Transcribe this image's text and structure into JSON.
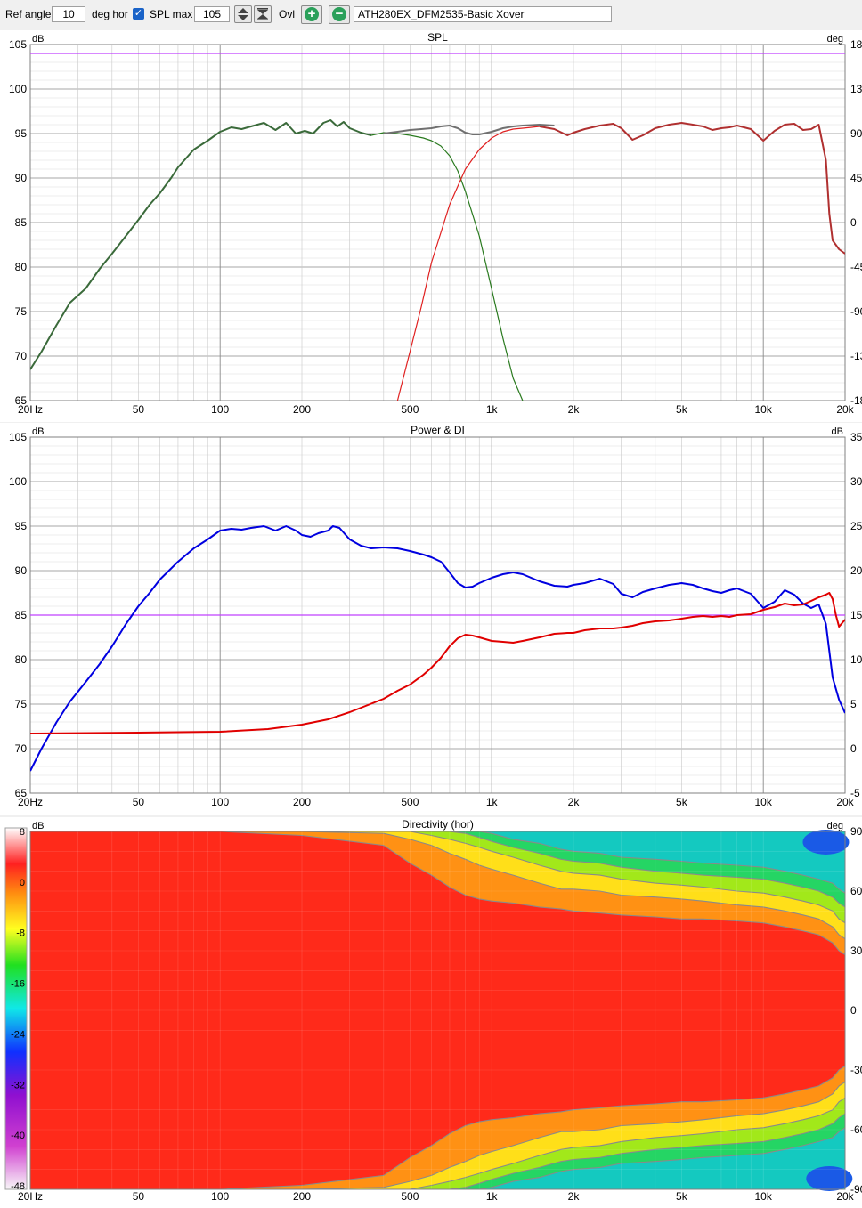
{
  "toolbar": {
    "ref_angle_label": "Ref angle",
    "ref_angle_value": "10",
    "deg_hor_label": "deg hor",
    "spl_max_label": "SPL max",
    "spl_max_value": "105",
    "ovl_label": "Ovl",
    "project_name": "ATH280EX_DFM2535-Basic Xover"
  },
  "colors": {
    "grid": "#a0a0a0",
    "reference_line": "#c040ff",
    "woofer": "#2a7a1f",
    "tweeter": "#e02020",
    "sum_upper": "#707070",
    "sum_lower": "#b03030",
    "power": "#0000e0",
    "di": "#e00000"
  },
  "chart_data": [
    {
      "type": "line",
      "title": "SPL",
      "ylabel": "dB",
      "y2label": "deg",
      "xscale": "log",
      "xlim": [
        20,
        20000
      ],
      "ylim": [
        65,
        105
      ],
      "x_ticks": [
        "20Hz",
        "50",
        "100",
        "200",
        "500",
        "1k",
        "2k",
        "5k",
        "10k",
        "20k"
      ],
      "y_ticks": [
        "105",
        "100",
        "95",
        "90",
        "85",
        "80",
        "75",
        "70",
        "65"
      ],
      "y2_ticks": [
        "180",
        "135",
        "90",
        "45",
        "0",
        "-45",
        "-90",
        "-135",
        "-180"
      ],
      "reference_line": 104,
      "series": [
        {
          "x": [
            20,
            22,
            25,
            28,
            32,
            36,
            40,
            45,
            50,
            55,
            60,
            66,
            70,
            80,
            90,
            100,
            110,
            120,
            130,
            145,
            160,
            175,
            190,
            205,
            220,
            240,
            255,
            270,
            285,
            300,
            330,
            360,
            400,
            450,
            500,
            560,
            600,
            650,
            700,
            750,
            800,
            900,
            1000,
            1100,
            1200,
            1300
          ],
          "y": [
            68.5,
            70.5,
            73.5,
            76,
            77.6,
            79.8,
            81.5,
            83.5,
            85.3,
            87,
            88.3,
            90,
            91.2,
            93.2,
            94.2,
            95.2,
            95.7,
            95.5,
            95.8,
            96.2,
            95.4,
            96.2,
            95,
            95.3,
            95,
            96.2,
            96.5,
            95.8,
            96.3,
            95.6,
            95.1,
            94.8,
            95.1,
            95,
            94.8,
            94.5,
            94.2,
            93.6,
            92.5,
            90.8,
            88.5,
            83.5,
            77.5,
            72,
            67.5,
            65
          ]
        },
        {
          "x": [
            450,
            500,
            550,
            600,
            700,
            800,
            900,
            1000,
            1100,
            1200,
            1300,
            1400,
            1500
          ],
          "y": [
            65,
            70.5,
            75.5,
            80.5,
            87,
            91,
            93.2,
            94.5,
            95.2,
            95.5,
            95.6,
            95.7,
            95.8
          ]
        },
        {
          "x": [
            400,
            450,
            500,
            550,
            600,
            650,
            700,
            750,
            800,
            850,
            900,
            1000,
            1100,
            1200,
            1300,
            1500,
            1700
          ],
          "y": [
            95,
            95.2,
            95.4,
            95.5,
            95.6,
            95.8,
            95.9,
            95.6,
            95.1,
            94.9,
            94.9,
            95.2,
            95.6,
            95.8,
            95.9,
            96,
            95.9
          ]
        },
        {
          "x": [
            1500,
            1700,
            1900,
            2000,
            2200,
            2500,
            2800,
            3000,
            3300,
            3600,
            4000,
            4500,
            5000,
            5500,
            6000,
            6500,
            7000,
            7500,
            8000,
            9000,
            10000,
            11000,
            12000,
            13000,
            14000,
            15000,
            16000,
            17000,
            17500,
            18000,
            19000,
            20000
          ],
          "y": [
            95.8,
            95.5,
            94.8,
            95.1,
            95.5,
            95.9,
            96.1,
            95.6,
            94.3,
            94.8,
            95.6,
            96,
            96.2,
            96,
            95.8,
            95.4,
            95.6,
            95.7,
            95.9,
            95.5,
            94.2,
            95.3,
            96,
            96.1,
            95.4,
            95.5,
            96,
            92,
            86,
            83,
            82,
            81.5
          ]
        }
      ]
    },
    {
      "type": "line",
      "title": "Power & DI",
      "ylabel": "dB",
      "y2label": "dB",
      "xscale": "log",
      "xlim": [
        20,
        20000
      ],
      "ylim": [
        65,
        105
      ],
      "x_ticks": [
        "20Hz",
        "50",
        "100",
        "200",
        "500",
        "1k",
        "2k",
        "5k",
        "10k",
        "20k"
      ],
      "y_ticks": [
        "105",
        "100",
        "95",
        "90",
        "85",
        "80",
        "75",
        "70",
        "65"
      ],
      "y2_ticks": [
        "35",
        "30",
        "25",
        "20",
        "15",
        "10",
        "5",
        "0",
        "-5"
      ],
      "reference_line": 85,
      "series": [
        {
          "x": [
            20,
            22,
            25,
            28,
            32,
            36,
            40,
            45,
            50,
            55,
            60,
            70,
            80,
            90,
            100,
            110,
            120,
            130,
            145,
            160,
            175,
            190,
            200,
            215,
            230,
            250,
            260,
            275,
            300,
            330,
            360,
            400,
            450,
            500,
            560,
            600,
            650,
            700,
            750,
            800,
            850,
            900,
            1000,
            1100,
            1200,
            1300,
            1500,
            1700,
            1900,
            2000,
            2200,
            2500,
            2800,
            3000,
            3300,
            3600,
            4000,
            4500,
            5000,
            5500,
            6000,
            6500,
            7000,
            7500,
            8000,
            9000,
            10000,
            11000,
            12000,
            13000,
            14000,
            15000,
            16000,
            17000,
            18000,
            19000,
            20000
          ],
          "y": [
            67.5,
            70,
            73,
            75.3,
            77.5,
            79.5,
            81.5,
            84,
            86,
            87.5,
            89,
            91,
            92.5,
            93.5,
            94.5,
            94.7,
            94.6,
            94.8,
            95,
            94.5,
            95,
            94.5,
            94,
            93.8,
            94.2,
            94.5,
            95,
            94.8,
            93.5,
            92.8,
            92.5,
            92.6,
            92.5,
            92.2,
            91.8,
            91.5,
            91,
            89.8,
            88.6,
            88.1,
            88.2,
            88.6,
            89.2,
            89.6,
            89.8,
            89.6,
            88.8,
            88.3,
            88.2,
            88.4,
            88.6,
            89.1,
            88.5,
            87.4,
            87,
            87.6,
            88,
            88.4,
            88.6,
            88.4,
            88,
            87.7,
            87.5,
            87.8,
            88,
            87.4,
            85.8,
            86.5,
            87.8,
            87.3,
            86.3,
            85.8,
            86.2,
            84,
            78,
            75.5,
            74
          ]
        },
        {
          "x": [
            20,
            50,
            100,
            150,
            200,
            250,
            300,
            350,
            400,
            450,
            500,
            560,
            600,
            650,
            700,
            750,
            800,
            850,
            900,
            1000,
            1100,
            1200,
            1300,
            1500,
            1700,
            1900,
            2000,
            2200,
            2500,
            2800,
            3000,
            3300,
            3600,
            4000,
            4500,
            5000,
            5500,
            6000,
            6500,
            7000,
            7500,
            8000,
            9000,
            10000,
            11000,
            12000,
            13000,
            14000,
            15000,
            16000,
            17000,
            17500,
            18000,
            18500,
            19000,
            20000
          ],
          "y": [
            1.7,
            1.8,
            1.9,
            2.2,
            2.7,
            3.3,
            4.1,
            4.9,
            5.6,
            6.5,
            7.2,
            8.3,
            9.1,
            10.2,
            11.5,
            12.4,
            12.8,
            12.7,
            12.5,
            12.1,
            12,
            11.9,
            12.1,
            12.5,
            12.9,
            13,
            13,
            13.3,
            13.5,
            13.5,
            13.6,
            13.8,
            14.1,
            14.3,
            14.4,
            14.6,
            14.8,
            14.9,
            14.8,
            14.9,
            14.8,
            15,
            15.1,
            15.6,
            15.9,
            16.3,
            16.1,
            16.2,
            16.6,
            17,
            17.3,
            17.5,
            16.8,
            15,
            13.7,
            14.5
          ]
        }
      ]
    },
    {
      "type": "heatmap",
      "title": "Directivity (hor)",
      "ylabel": "dB",
      "y2label": "deg",
      "xscale": "log",
      "xlim": [
        20,
        20000
      ],
      "ylim": [
        -90,
        90
      ],
      "x_ticks": [
        "20Hz",
        "50",
        "100",
        "200",
        "500",
        "1k",
        "2k",
        "5k",
        "10k",
        "20k"
      ],
      "y2_ticks": [
        "90",
        "60",
        "30",
        "0",
        "-30",
        "-60",
        "-90"
      ],
      "colorbar_ticks": [
        "8",
        "0",
        "-8",
        "-16",
        "-24",
        "-32",
        "-40",
        "-48"
      ],
      "colorbar_range": [
        -48,
        8
      ],
      "contour_frequencies": [
        100,
        200,
        400,
        500,
        600,
        700,
        800,
        900,
        1000,
        1200,
        1500,
        1800,
        2000,
        2500,
        3000,
        4000,
        5000,
        6000,
        8000,
        10000,
        12000,
        14000,
        16000,
        18000,
        19000,
        20000
      ],
      "contours_deg": [
        {
          "level": -6,
          "deg": [
            90,
            88,
            83,
            74,
            68,
            62,
            58,
            56,
            55,
            54,
            52,
            51,
            50,
            49,
            48,
            47,
            46,
            46,
            45,
            44,
            42,
            40,
            38,
            34,
            30,
            28
          ]
        },
        {
          "level": -9,
          "deg": [
            90,
            90,
            89,
            86,
            83,
            79,
            76,
            73,
            71,
            68,
            64,
            61,
            61,
            60,
            58,
            57,
            56,
            55,
            53,
            52,
            50,
            48,
            46,
            42,
            38,
            36
          ]
        },
        {
          "level": -12,
          "deg": [
            90,
            90,
            90,
            90,
            88,
            86,
            84,
            82,
            80,
            77,
            73,
            70,
            69,
            68,
            66,
            64,
            63,
            62,
            60,
            59,
            57,
            55,
            53,
            50,
            46,
            44
          ]
        },
        {
          "level": -15,
          "deg": [
            90,
            90,
            90,
            90,
            90,
            90,
            89,
            87,
            85,
            82,
            79,
            76,
            75,
            74,
            72,
            70,
            69,
            68,
            67,
            66,
            64,
            62,
            60,
            57,
            54,
            52
          ]
        },
        {
          "level": -18,
          "deg": [
            90,
            90,
            90,
            90,
            90,
            90,
            90,
            90,
            89,
            86,
            84,
            81,
            80,
            79,
            77,
            76,
            75,
            74,
            73,
            72,
            70,
            68,
            66,
            64,
            61,
            59
          ]
        }
      ]
    }
  ]
}
